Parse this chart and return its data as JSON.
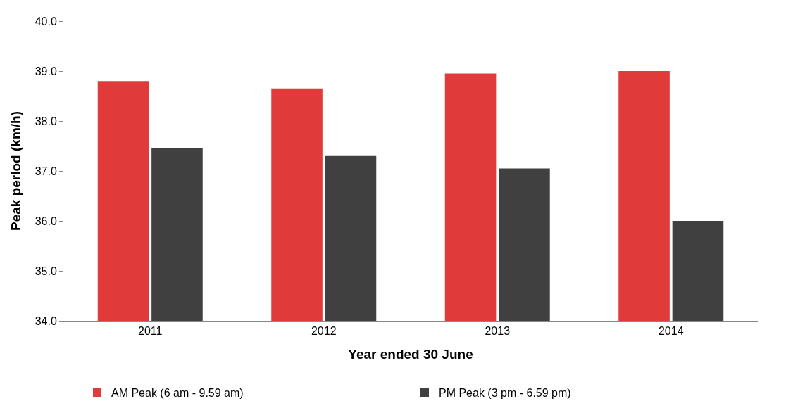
{
  "chart_data": {
    "type": "bar",
    "xlabel": "Year ended 30 June",
    "ylabel": "Peak period (km/h)",
    "categories": [
      "2011",
      "2012",
      "2013",
      "2014"
    ],
    "series": [
      {
        "name": "AM Peak (6 am - 9.59 am)",
        "color": "#e03a3a",
        "values": [
          38.8,
          38.65,
          38.95,
          39.0
        ]
      },
      {
        "name": "PM Peak (3 pm - 6.59 pm)",
        "color": "#404040",
        "values": [
          37.45,
          37.3,
          37.05,
          36.0
        ]
      }
    ],
    "ylim": [
      34,
      40
    ],
    "yticks": [
      {
        "value": 34,
        "label": "34.0"
      },
      {
        "value": 35,
        "label": "35.0"
      },
      {
        "value": 36,
        "label": "36.0"
      },
      {
        "value": 37,
        "label": "37.0"
      },
      {
        "value": 38,
        "label": "38.0"
      },
      {
        "value": 39,
        "label": "39.0"
      },
      {
        "value": 40,
        "label": "40.0"
      }
    ],
    "legend": "bottom"
  }
}
